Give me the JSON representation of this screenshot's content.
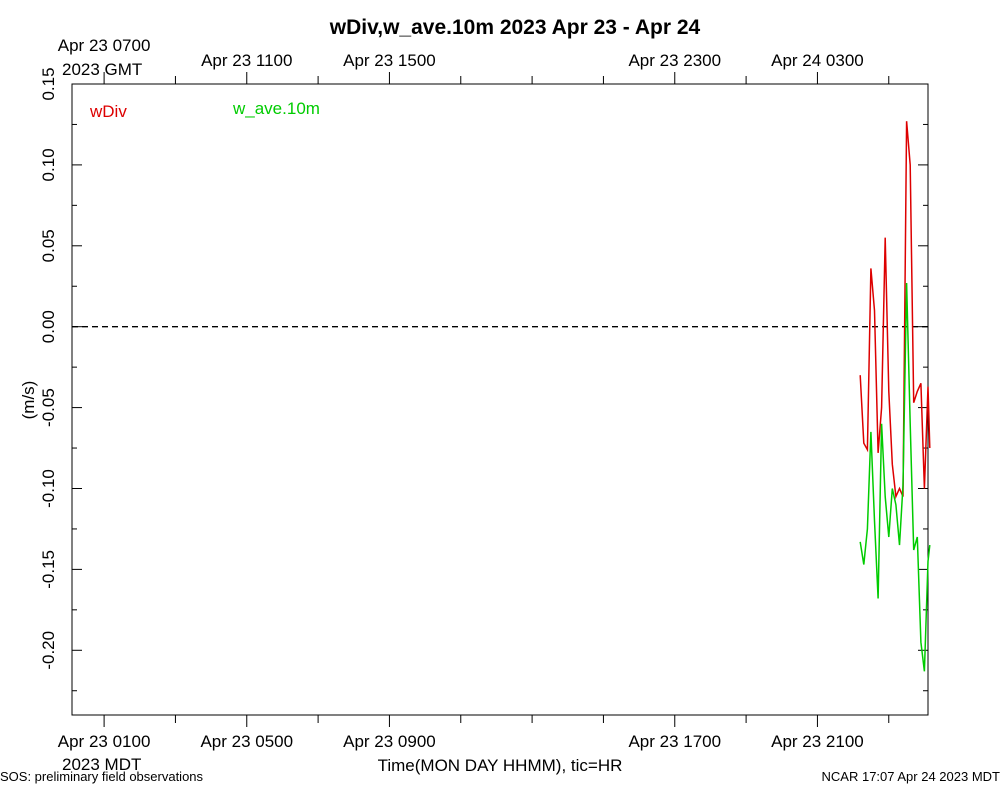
{
  "chart_data": {
    "type": "line",
    "title": "wDiv,w_ave.10m 2023 Apr 23 - Apr 24",
    "xlabel": "Time(MON DAY HHMM), tic=HR",
    "ylabel": "(m/s)",
    "ylim": [
      -0.24,
      0.15
    ],
    "xlim_hours_mdt": [
      -0.9,
      23.1
    ],
    "y_ticks": [
      {
        "value": 0.15,
        "label": "0.15"
      },
      {
        "value": 0.1,
        "label": "0.10"
      },
      {
        "value": 0.05,
        "label": "0.05"
      },
      {
        "value": 0.0,
        "label": "0.00"
      },
      {
        "value": -0.05,
        "label": "-0.05"
      },
      {
        "value": -0.1,
        "label": "-0.10"
      },
      {
        "value": -0.15,
        "label": "-0.15"
      },
      {
        "value": -0.2,
        "label": "-0.20"
      }
    ],
    "x_ticks_bottom": [
      {
        "hour": 0,
        "label": "Apr 23 0100"
      },
      {
        "hour": 4,
        "label": "Apr 23 0500"
      },
      {
        "hour": 8,
        "label": "Apr 23 0900"
      },
      {
        "hour": 16,
        "label": "Apr 23 1700"
      },
      {
        "hour": 20,
        "label": "Apr 23 2100"
      }
    ],
    "x_ticks_top": [
      {
        "hour": 0,
        "label": "Apr 23 0700"
      },
      {
        "hour": 4,
        "label": "Apr 23 1100"
      },
      {
        "hour": 8,
        "label": "Apr 23 1500"
      },
      {
        "hour": 16,
        "label": "Apr 23 2300"
      },
      {
        "hour": 20,
        "label": "Apr 24 0300"
      }
    ],
    "bottom_tz_label": "2023 MDT",
    "top_tz_label": "2023 GMT",
    "reference_line": {
      "value": 0.0,
      "style": "dashed"
    },
    "series": [
      {
        "name": "wDiv",
        "color": "#dd0000",
        "points": [
          [
            21.2,
            -0.03
          ],
          [
            21.3,
            -0.072
          ],
          [
            21.4,
            -0.076
          ],
          [
            21.5,
            0.036
          ],
          [
            21.6,
            0.01
          ],
          [
            21.7,
            -0.078
          ],
          [
            21.8,
            -0.05
          ],
          [
            21.9,
            0.055
          ],
          [
            22.0,
            -0.04
          ],
          [
            22.1,
            -0.085
          ],
          [
            22.2,
            -0.105
          ],
          [
            22.3,
            -0.1
          ],
          [
            22.4,
            -0.105
          ],
          [
            22.5,
            0.127
          ],
          [
            22.6,
            0.1
          ],
          [
            22.7,
            -0.047
          ],
          [
            22.8,
            -0.04
          ],
          [
            22.9,
            -0.035
          ],
          [
            23.0,
            -0.1
          ],
          [
            23.1,
            -0.037
          ],
          [
            23.15,
            -0.075
          ]
        ]
      },
      {
        "name": "w_ave.10m",
        "color": "#00cc00",
        "points": [
          [
            21.2,
            -0.133
          ],
          [
            21.3,
            -0.147
          ],
          [
            21.4,
            -0.125
          ],
          [
            21.5,
            -0.065
          ],
          [
            21.6,
            -0.12
          ],
          [
            21.7,
            -0.168
          ],
          [
            21.8,
            -0.06
          ],
          [
            21.9,
            -0.105
          ],
          [
            22.0,
            -0.13
          ],
          [
            22.1,
            -0.1
          ],
          [
            22.2,
            -0.11
          ],
          [
            22.3,
            -0.135
          ],
          [
            22.4,
            -0.098
          ],
          [
            22.5,
            0.027
          ],
          [
            22.6,
            -0.06
          ],
          [
            22.7,
            -0.138
          ],
          [
            22.8,
            -0.13
          ],
          [
            22.9,
            -0.195
          ],
          [
            23.0,
            -0.213
          ],
          [
            23.1,
            -0.145
          ],
          [
            23.15,
            -0.135
          ]
        ]
      }
    ],
    "legend_placement": "top-left"
  },
  "footer": {
    "left": "SOS: preliminary field observations",
    "right": "NCAR 17:07 Apr 24 2023 MDT"
  }
}
